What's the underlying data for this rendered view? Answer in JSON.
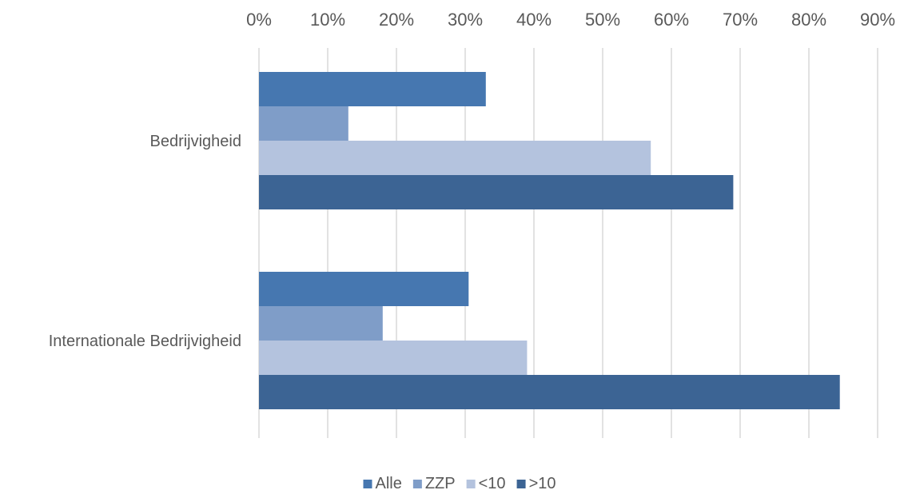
{
  "chart_data": {
    "type": "bar",
    "orientation": "horizontal",
    "title": "",
    "xlabel": "",
    "ylabel": "",
    "categories": [
      "Bedrijvigheid",
      "Internationale Bedrijvigheid"
    ],
    "series": [
      {
        "name": "Alle",
        "values": [
          33,
          30.5
        ],
        "color": "#4677b0"
      },
      {
        "name": "ZZP",
        "values": [
          13,
          18
        ],
        "color": "#7f9dc8"
      },
      {
        "name": "<10",
        "values": [
          57,
          39
        ],
        "color": "#b4c3de"
      },
      {
        "name": ">10",
        "values": [
          69,
          84.5
        ],
        "color": "#3c6494"
      }
    ],
    "xlim": [
      0,
      90
    ],
    "x_ticks": [
      "0%",
      "10%",
      "20%",
      "30%",
      "40%",
      "50%",
      "60%",
      "70%",
      "80%",
      "90%"
    ],
    "x_axis_position": "top",
    "grid": true,
    "legend_position": "bottom"
  }
}
